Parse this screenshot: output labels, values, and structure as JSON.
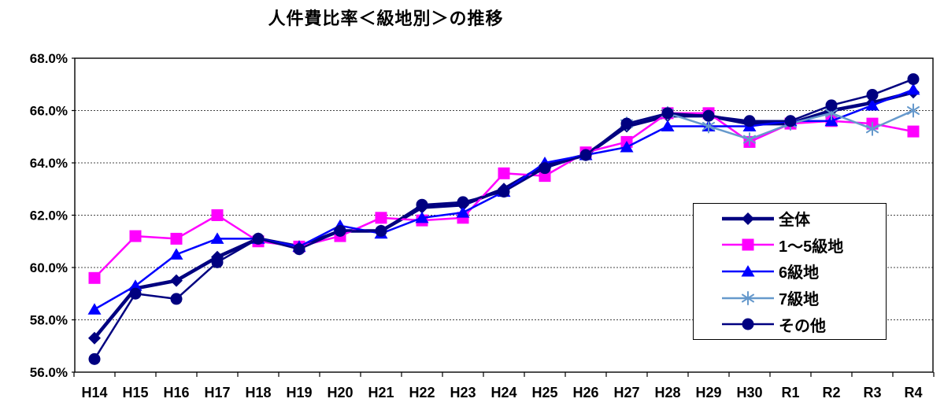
{
  "title": "人件費比率＜級地別＞の推移",
  "chart_data": {
    "type": "line",
    "title": "人件費比率＜級地別＞の推移",
    "categories": [
      "H14",
      "H15",
      "H16",
      "H17",
      "H18",
      "H19",
      "H20",
      "H21",
      "H22",
      "H23",
      "H24",
      "H25",
      "H26",
      "H27",
      "H28",
      "H29",
      "H30",
      "R1",
      "R2",
      "R3",
      "R4"
    ],
    "series": [
      {
        "key": "zentai",
        "name": "全体",
        "color": "#000080",
        "marker": "diamond",
        "line_width": 4.5,
        "values": [
          57.3,
          59.2,
          59.5,
          60.4,
          61.1,
          60.8,
          61.4,
          61.4,
          62.3,
          62.4,
          63.0,
          63.9,
          64.3,
          65.4,
          65.8,
          65.8,
          65.5,
          65.5,
          66.0,
          66.3,
          66.7
        ]
      },
      {
        "key": "grade1-5",
        "name": "1～5級地",
        "color": "#FF00FF",
        "marker": "square",
        "line_width": 2.5,
        "values": [
          59.6,
          61.2,
          61.1,
          62.0,
          61.0,
          60.8,
          61.2,
          61.9,
          61.8,
          61.9,
          63.6,
          63.5,
          64.4,
          64.8,
          65.9,
          65.9,
          64.8,
          65.5,
          65.6,
          65.5,
          65.2
        ]
      },
      {
        "key": "grade6",
        "name": "6級地",
        "color": "#0000FF",
        "marker": "triangle",
        "line_width": 2.5,
        "values": [
          58.4,
          59.3,
          60.5,
          61.1,
          61.1,
          60.8,
          61.6,
          61.3,
          61.9,
          62.1,
          62.9,
          64.0,
          64.3,
          64.6,
          65.4,
          65.4,
          65.4,
          65.6,
          65.6,
          66.2,
          66.8
        ]
      },
      {
        "key": "grade7",
        "name": "7級地",
        "color": "#6699CC",
        "marker": "asterisk",
        "line_width": 2.5,
        "values": [
          null,
          null,
          null,
          null,
          null,
          null,
          null,
          null,
          null,
          null,
          null,
          null,
          null,
          65.5,
          65.9,
          65.4,
          64.9,
          65.5,
          65.9,
          65.3,
          66.0
        ]
      },
      {
        "key": "other",
        "name": "その他",
        "color": "#000080",
        "marker": "circle",
        "line_width": 2.5,
        "values": [
          56.5,
          59.0,
          58.8,
          60.2,
          61.1,
          60.7,
          61.4,
          61.4,
          62.4,
          62.5,
          62.9,
          63.8,
          64.3,
          65.5,
          65.9,
          65.8,
          65.6,
          65.6,
          66.2,
          66.6,
          67.2
        ]
      }
    ],
    "ylim": [
      56,
      68
    ],
    "ytick_step": 2,
    "ytick_labels": [
      "56.0%",
      "58.0%",
      "60.0%",
      "62.0%",
      "64.0%",
      "66.0%",
      "68.0%"
    ],
    "grid": "horizontal dotted",
    "legend_position": "inside right"
  }
}
